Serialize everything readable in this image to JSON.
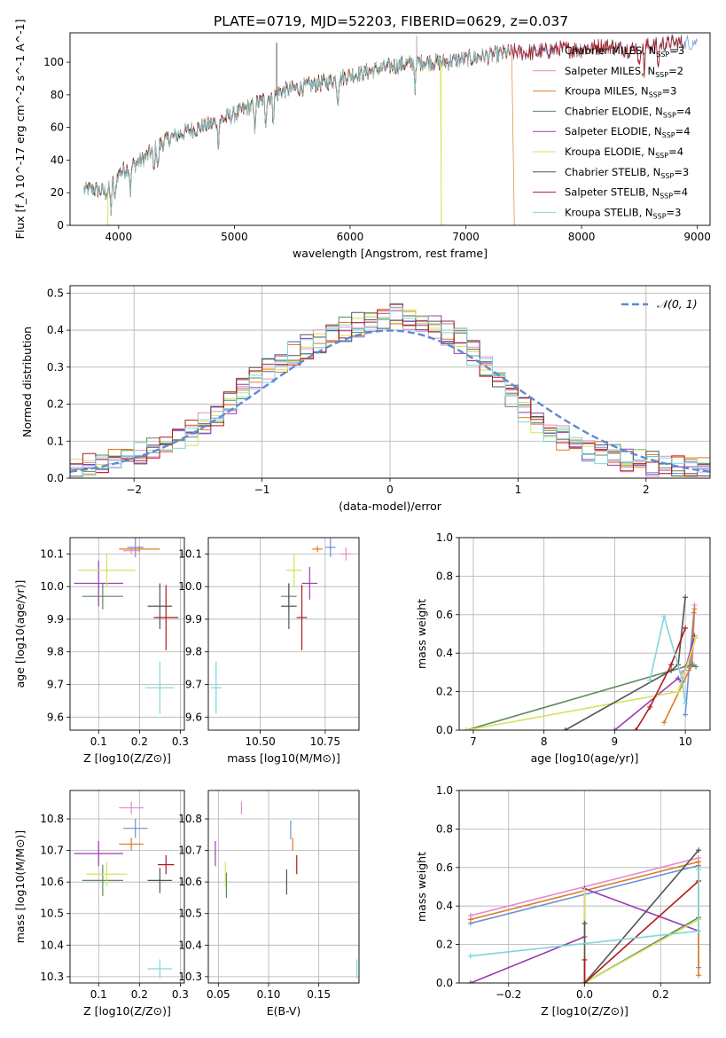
{
  "figure": {
    "title": "PLATE=0719, MJD=52203, FIBERID=0629, z=0.037"
  },
  "chart_data": [
    {
      "id": "spectrum",
      "type": "line",
      "xlabel": "wavelength [Angstrom, rest frame]",
      "ylabel": "Flux [f_λ 10^-17 erg cm^-2 s^-1 A^-1]",
      "xlim": [
        3580,
        9110
      ],
      "ylim": [
        0,
        118
      ],
      "xticks": [
        4000,
        5000,
        6000,
        7000,
        8000,
        9000
      ],
      "yticks": [
        0,
        20,
        40,
        60,
        80,
        100
      ],
      "grid": false,
      "legend_position": "right",
      "continuum_profile": {
        "x": [
          3700,
          3800,
          3900,
          4000,
          4200,
          4400,
          4600,
          4800,
          5000,
          5200,
          5400,
          5600,
          5800,
          6000,
          6200,
          6400,
          6600,
          6800,
          7000,
          7200,
          7400,
          7600,
          7800,
          8000,
          8200,
          8400,
          8600,
          8800
        ],
        "y": [
          22,
          22,
          20,
          32,
          40,
          52,
          58,
          62,
          68,
          75,
          82,
          85,
          88,
          92,
          95,
          98,
          100,
          100,
          102,
          104,
          106,
          106,
          108,
          108,
          110,
          108,
          110,
          112
        ]
      },
      "absorption_lines": [
        3934,
        3969,
        4102,
        4304,
        4340,
        4861,
        5175,
        5270,
        5335,
        5893,
        6563,
        8498,
        8542,
        8662
      ],
      "series": [
        {
          "name": "Chabrier MILES",
          "nssp": "3",
          "color": "#6a93d6",
          "end": 9000,
          "drop_at": null
        },
        {
          "name": "Salpeter MILES",
          "nssp": "2",
          "color": "#e58ac9",
          "end": 8800,
          "drop_at": null
        },
        {
          "name": "Kroupa MILES",
          "nssp": "3",
          "color": "#df7c24",
          "end": 7400,
          "drop_at": 7420
        },
        {
          "name": "Chabrier ELODIE",
          "nssp": "4",
          "color": "#5e8a5e",
          "end": 6780,
          "drop_at": null
        },
        {
          "name": "Salpeter ELODIE",
          "nssp": "4",
          "color": "#9b3db0",
          "end": 6780,
          "drop_at": null
        },
        {
          "name": "Kroupa ELODIE",
          "nssp": "4",
          "color": "#d6e25a",
          "end": 6780,
          "drop_at": 6790
        },
        {
          "name": "Chabrier STELIB",
          "nssp": "3",
          "color": "#555555",
          "end": 8880,
          "drop_at": null
        },
        {
          "name": "Salpeter STELIB",
          "nssp": "4",
          "color": "#b01a1a",
          "end": 8880,
          "drop_at": null
        },
        {
          "name": "Kroupa STELIB",
          "nssp": "3",
          "color": "#7fd7d9",
          "end": 7400,
          "drop_at": null
        }
      ],
      "spikes": [
        {
          "x": 5365,
          "y": 112,
          "color": "#555555"
        },
        {
          "x": 6575,
          "y": 116,
          "color": "#aaaaaa"
        },
        {
          "x": 6787,
          "y": 0,
          "color": "#d6e25a"
        },
        {
          "x": 3907,
          "y": 0,
          "color": "#d6e25a"
        }
      ]
    },
    {
      "id": "residuals",
      "type": "histogram",
      "xlabel": "(data-model)/error",
      "ylabel": "Normed distribution",
      "xlim": [
        -2.5,
        2.5
      ],
      "ylim": [
        0,
        0.52
      ],
      "xticks": [
        -2,
        -1,
        0,
        1,
        2
      ],
      "yticks": [
        0.0,
        0.1,
        0.2,
        0.3,
        0.4,
        0.5
      ],
      "grid": true,
      "bin_width": 0.1,
      "legend": {
        "label": "𝒩(0, 1)",
        "position": "top-right",
        "color": "#5b8ad6"
      },
      "series_colors": [
        "#6a93d6",
        "#e58ac9",
        "#df7c24",
        "#5e8a5e",
        "#9b3db0",
        "#d6e25a",
        "#555555",
        "#b01a1a",
        "#7fd7d9"
      ],
      "envelope_x": [
        -2.5,
        -2.0,
        -1.5,
        -1.2,
        -1.0,
        -0.8,
        -0.5,
        -0.3,
        0.0,
        0.2,
        0.4,
        0.6,
        0.8,
        1.0,
        1.2,
        1.5,
        2.0,
        2.5
      ],
      "envelope_y": [
        0.02,
        0.06,
        0.13,
        0.22,
        0.28,
        0.33,
        0.38,
        0.41,
        0.44,
        0.43,
        0.4,
        0.36,
        0.28,
        0.2,
        0.14,
        0.08,
        0.04,
        0.02
      ]
    },
    {
      "id": "age-vs-Z",
      "type": "scatter",
      "xlabel": "Z [log10(Z/Z⊙)]",
      "ylabel": "age [log10(age/yr)]",
      "xlim": [
        0.03,
        0.31
      ],
      "ylim": [
        9.56,
        10.15
      ],
      "xticks": [
        0.1,
        0.2,
        0.3
      ],
      "yticks": [
        9.6,
        9.7,
        9.8,
        9.9,
        10.0,
        10.1
      ],
      "grid": true,
      "points": [
        {
          "x": 0.19,
          "y": 10.12,
          "xerr": 0.02,
          "yerr": 0.03,
          "color": "#6a93d6"
        },
        {
          "x": 0.18,
          "y": 10.11,
          "xerr": 0.02,
          "yerr": 0.01,
          "color": "#e58ac9"
        },
        {
          "x": 0.2,
          "y": 10.115,
          "xerr": 0.05,
          "yerr": 0.01,
          "color": "#df7c24"
        },
        {
          "x": 0.11,
          "y": 9.97,
          "xerr": 0.05,
          "yerr": 0.04,
          "color": "#5e8a5e"
        },
        {
          "x": 0.1,
          "y": 10.01,
          "xerr": 0.06,
          "yerr": 0.07,
          "color": "#9b3db0"
        },
        {
          "x": 0.12,
          "y": 10.05,
          "xerr": 0.07,
          "yerr": 0.05,
          "color": "#d6e25a"
        },
        {
          "x": 0.25,
          "y": 9.94,
          "xerr": 0.03,
          "yerr": 0.07,
          "color": "#555555"
        },
        {
          "x": 0.265,
          "y": 9.905,
          "xerr": 0.03,
          "yerr": 0.1,
          "color": "#b01a1a"
        },
        {
          "x": 0.25,
          "y": 9.69,
          "xerr": 0.035,
          "yerr": 0.08,
          "color": "#7fd7d9"
        }
      ]
    },
    {
      "id": "age-vs-mass",
      "type": "scatter",
      "xlabel": "mass [log10(M/M⊙)]",
      "ylabel": "",
      "xlim": [
        10.3,
        10.88
      ],
      "ylim": [
        9.56,
        10.15
      ],
      "xticks": [
        10.5,
        10.75
      ],
      "yticks": [
        9.6,
        9.7,
        9.8,
        9.9,
        10.0,
        10.1
      ],
      "grid": true,
      "points": [
        {
          "x": 10.77,
          "y": 10.12,
          "xerr": 0.02,
          "yerr": 0.03,
          "color": "#6a93d6"
        },
        {
          "x": 10.83,
          "y": 10.1,
          "xerr": 0.02,
          "yerr": 0.02,
          "color": "#e58ac9"
        },
        {
          "x": 10.72,
          "y": 10.115,
          "xerr": 0.02,
          "yerr": 0.01,
          "color": "#df7c24"
        },
        {
          "x": 10.61,
          "y": 9.97,
          "xerr": 0.03,
          "yerr": 0.04,
          "color": "#5e8a5e"
        },
        {
          "x": 10.69,
          "y": 10.01,
          "xerr": 0.03,
          "yerr": 0.05,
          "color": "#9b3db0"
        },
        {
          "x": 10.63,
          "y": 10.05,
          "xerr": 0.03,
          "yerr": 0.05,
          "color": "#d6e25a"
        },
        {
          "x": 10.61,
          "y": 9.94,
          "xerr": 0.03,
          "yerr": 0.07,
          "color": "#555555"
        },
        {
          "x": 10.66,
          "y": 9.905,
          "xerr": 0.02,
          "yerr": 0.1,
          "color": "#b01a1a"
        },
        {
          "x": 10.33,
          "y": 9.69,
          "xerr": 0.02,
          "yerr": 0.08,
          "color": "#7fd7d9"
        }
      ]
    },
    {
      "id": "weight-vs-age",
      "type": "line",
      "xlabel": "age [log10(age/yr)]",
      "ylabel": "mass weight",
      "xlim": [
        6.8,
        10.35
      ],
      "ylim": [
        0,
        1.0
      ],
      "xticks": [
        7,
        8,
        9,
        10
      ],
      "yticks": [
        0.0,
        0.2,
        0.4,
        0.6,
        0.8,
        1.0
      ],
      "grid": true,
      "series": [
        {
          "color": "#6a93d6",
          "points": [
            [
              10.0,
              0.08
            ],
            [
              10.05,
              0.31
            ],
            [
              10.12,
              0.61
            ]
          ]
        },
        {
          "color": "#e58ac9",
          "points": [
            [
              9.95,
              0.3
            ],
            [
              10.1,
              0.35
            ],
            [
              10.13,
              0.65
            ]
          ]
        },
        {
          "color": "#df7c24",
          "points": [
            [
              9.7,
              0.04
            ],
            [
              10.08,
              0.33
            ],
            [
              10.13,
              0.63
            ]
          ]
        },
        {
          "color": "#5e8a5e",
          "points": [
            [
              6.9,
              0.0
            ],
            [
              10.0,
              0.33
            ],
            [
              10.1,
              0.34
            ],
            [
              10.15,
              0.33
            ]
          ]
        },
        {
          "color": "#9b3db0",
          "points": [
            [
              9.0,
              0.0
            ],
            [
              9.9,
              0.27
            ],
            [
              9.95,
              0.25
            ],
            [
              10.13,
              0.49
            ]
          ]
        },
        {
          "color": "#d6e25a",
          "points": [
            [
              6.9,
              0.0
            ],
            [
              9.9,
              0.2
            ],
            [
              10.15,
              0.48
            ]
          ]
        },
        {
          "color": "#555555",
          "points": [
            [
              8.3,
              0.0
            ],
            [
              9.8,
              0.31
            ],
            [
              9.9,
              0.34
            ],
            [
              10.0,
              0.69
            ]
          ]
        },
        {
          "color": "#b01a1a",
          "points": [
            [
              9.3,
              0.0
            ],
            [
              9.5,
              0.12
            ],
            [
              9.8,
              0.34
            ],
            [
              10.0,
              0.53
            ]
          ]
        },
        {
          "color": "#7fd7d9",
          "points": [
            [
              9.5,
              0.26
            ],
            [
              9.7,
              0.59
            ],
            [
              9.95,
              0.27
            ],
            [
              10.0,
              0.14
            ]
          ]
        }
      ]
    },
    {
      "id": "mass-vs-Z",
      "type": "scatter",
      "xlabel": "Z [log10(Z/Z⊙)]",
      "ylabel": "mass [log10(M/M⊙)]",
      "xlim": [
        0.03,
        0.31
      ],
      "ylim": [
        10.28,
        10.89
      ],
      "xticks": [
        0.1,
        0.2,
        0.3
      ],
      "yticks": [
        10.3,
        10.4,
        10.5,
        10.6,
        10.7,
        10.8
      ],
      "grid": true,
      "points": [
        {
          "x": 0.19,
          "y": 10.77,
          "xerr": 0.03,
          "yerr": 0.03,
          "color": "#6a93d6"
        },
        {
          "x": 0.18,
          "y": 10.835,
          "xerr": 0.03,
          "yerr": 0.02,
          "color": "#e58ac9"
        },
        {
          "x": 0.18,
          "y": 10.72,
          "xerr": 0.03,
          "yerr": 0.02,
          "color": "#df7c24"
        },
        {
          "x": 0.11,
          "y": 10.605,
          "xerr": 0.05,
          "yerr": 0.05,
          "color": "#5e8a5e"
        },
        {
          "x": 0.1,
          "y": 10.69,
          "xerr": 0.06,
          "yerr": 0.04,
          "color": "#9b3db0"
        },
        {
          "x": 0.12,
          "y": 10.625,
          "xerr": 0.05,
          "yerr": 0.04,
          "color": "#d6e25a"
        },
        {
          "x": 0.25,
          "y": 10.605,
          "xerr": 0.03,
          "yerr": 0.04,
          "color": "#555555"
        },
        {
          "x": 0.265,
          "y": 10.655,
          "xerr": 0.02,
          "yerr": 0.03,
          "color": "#b01a1a"
        },
        {
          "x": 0.25,
          "y": 10.325,
          "xerr": 0.03,
          "yerr": 0.03,
          "color": "#7fd7d9"
        }
      ]
    },
    {
      "id": "mass-vs-EBV",
      "type": "scatter",
      "xlabel": "E(B-V)",
      "ylabel": "",
      "xlim": [
        0.04,
        0.19
      ],
      "ylim": [
        10.28,
        10.89
      ],
      "xticks": [
        0.05,
        0.1,
        0.15
      ],
      "yticks": [
        10.3,
        10.4,
        10.5,
        10.6,
        10.7,
        10.8
      ],
      "grid": true,
      "points": [
        {
          "x": 0.122,
          "y": 10.765,
          "xerr": 0.0,
          "yerr": 0.03,
          "color": "#6a93d6"
        },
        {
          "x": 0.073,
          "y": 10.835,
          "xerr": 0.0,
          "yerr": 0.02,
          "color": "#e58ac9"
        },
        {
          "x": 0.124,
          "y": 10.72,
          "xerr": 0.0,
          "yerr": 0.02,
          "color": "#df7c24"
        },
        {
          "x": 0.058,
          "y": 10.59,
          "xerr": 0.0,
          "yerr": 0.04,
          "color": "#5e8a5e"
        },
        {
          "x": 0.047,
          "y": 10.69,
          "xerr": 0.0,
          "yerr": 0.04,
          "color": "#9b3db0"
        },
        {
          "x": 0.057,
          "y": 10.625,
          "xerr": 0.0,
          "yerr": 0.04,
          "color": "#d6e25a"
        },
        {
          "x": 0.118,
          "y": 10.6,
          "xerr": 0.0,
          "yerr": 0.04,
          "color": "#555555"
        },
        {
          "x": 0.128,
          "y": 10.655,
          "xerr": 0.0,
          "yerr": 0.03,
          "color": "#b01a1a"
        },
        {
          "x": 0.188,
          "y": 10.325,
          "xerr": 0.0,
          "yerr": 0.03,
          "color": "#7fd7d9"
        }
      ]
    },
    {
      "id": "weight-vs-Z",
      "type": "line",
      "xlabel": "Z [log10(Z/Z⊙)]",
      "ylabel": "mass weight",
      "xlim": [
        -0.33,
        0.33
      ],
      "ylim": [
        0,
        1.0
      ],
      "xticks": [
        -0.2,
        0.0,
        0.2
      ],
      "yticks": [
        0.0,
        0.2,
        0.4,
        0.6,
        0.8,
        1.0
      ],
      "grid": true,
      "series": [
        {
          "color": "#6a93d6",
          "points": [
            [
              -0.3,
              0.31
            ],
            [
              0.3,
              0.61
            ],
            [
              0.3,
              0.08
            ]
          ]
        },
        {
          "color": "#e58ac9",
          "points": [
            [
              -0.3,
              0.35
            ],
            [
              0.3,
              0.65
            ]
          ]
        },
        {
          "color": "#df7c24",
          "points": [
            [
              -0.3,
              0.33
            ],
            [
              0.3,
              0.63
            ],
            [
              0.3,
              0.04
            ]
          ]
        },
        {
          "color": "#5e8a5e",
          "points": [
            [
              0.0,
              0.0
            ],
            [
              0.3,
              0.34
            ],
            [
              0.3,
              0.33
            ]
          ]
        },
        {
          "color": "#9b3db0",
          "points": [
            [
              -0.3,
              0.0
            ],
            [
              0.0,
              0.24
            ],
            [
              0.0,
              0.49
            ],
            [
              0.3,
              0.27
            ]
          ]
        },
        {
          "color": "#d6e25a",
          "points": [
            [
              0.0,
              0.48
            ],
            [
              0.0,
              0.0
            ],
            [
              0.3,
              0.33
            ]
          ]
        },
        {
          "color": "#555555",
          "points": [
            [
              0.0,
              0.31
            ],
            [
              0.0,
              0.0
            ],
            [
              0.3,
              0.69
            ]
          ]
        },
        {
          "color": "#b01a1a",
          "points": [
            [
              0.0,
              0.12
            ],
            [
              0.0,
              0.0
            ],
            [
              0.3,
              0.53
            ]
          ]
        },
        {
          "color": "#7fd7d9",
          "points": [
            [
              -0.3,
              0.14
            ],
            [
              0.3,
              0.27
            ],
            [
              0.3,
              0.59
            ]
          ]
        }
      ]
    }
  ]
}
